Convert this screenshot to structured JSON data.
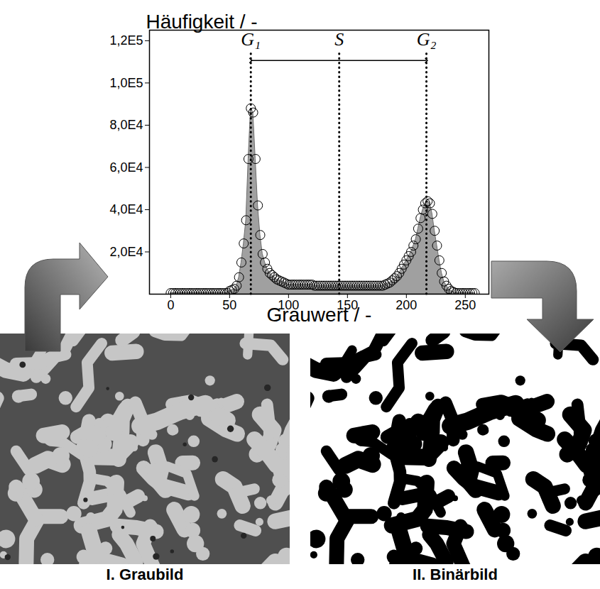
{
  "chart_data": {
    "type": "area",
    "marker": "circle",
    "color": "#a0a0a0",
    "y_label": "Häufigkeit / -",
    "x_label": "Grauwert / -",
    "xlim": [
      -18,
      270
    ],
    "xticks": [
      0,
      50,
      100,
      150,
      200,
      250
    ],
    "ylim": [
      0,
      125000
    ],
    "yticks": [
      {
        "value": 20000,
        "label": "2,0E4"
      },
      {
        "value": 40000,
        "label": "4,0E4"
      },
      {
        "value": 60000,
        "label": "6,0E4"
      },
      {
        "value": 80000,
        "label": "8,0E4"
      },
      {
        "value": 100000,
        "label": "1,0E5"
      },
      {
        "value": 120000,
        "label": "1,2E5"
      }
    ],
    "x": [
      0,
      2,
      4,
      6,
      8,
      10,
      12,
      14,
      16,
      18,
      20,
      22,
      24,
      26,
      28,
      30,
      32,
      34,
      36,
      38,
      40,
      42,
      44,
      46,
      48,
      50,
      52,
      54,
      56,
      58,
      60,
      62,
      64,
      66,
      68,
      70,
      72,
      74,
      76,
      78,
      80,
      82,
      84,
      86,
      88,
      90,
      92,
      94,
      96,
      98,
      100,
      102,
      104,
      106,
      108,
      110,
      112,
      114,
      116,
      118,
      120,
      122,
      124,
      126,
      128,
      130,
      132,
      134,
      136,
      138,
      140,
      142,
      144,
      146,
      148,
      150,
      152,
      154,
      156,
      158,
      160,
      162,
      164,
      166,
      168,
      170,
      172,
      174,
      176,
      178,
      180,
      182,
      184,
      186,
      188,
      190,
      192,
      194,
      196,
      198,
      200,
      202,
      204,
      206,
      208,
      210,
      212,
      214,
      216,
      218,
      220,
      222,
      224,
      226,
      228,
      230,
      232,
      234,
      236,
      238,
      240,
      242,
      244,
      246,
      248,
      250,
      252,
      254,
      256,
      258
    ],
    "values": [
      500,
      500,
      500,
      500,
      500,
      500,
      500,
      500,
      500,
      500,
      500,
      500,
      500,
      500,
      500,
      500,
      500,
      500,
      500,
      500,
      500,
      500,
      500,
      500,
      500,
      1500,
      2000,
      2500,
      4000,
      8000,
      15000,
      24000,
      35000,
      64000,
      88000,
      86000,
      64000,
      42000,
      28000,
      19000,
      15000,
      12000,
      10000,
      9000,
      8000,
      7000,
      6500,
      6000,
      5500,
      5000,
      4500,
      4500,
      4500,
      4500,
      4500,
      4500,
      4500,
      4500,
      4500,
      4500,
      4500,
      4000,
      4000,
      4000,
      4000,
      4000,
      4000,
      4000,
      4000,
      4000,
      4000,
      4000,
      4000,
      4000,
      4000,
      4000,
      4000,
      4000,
      4000,
      4000,
      4000,
      4000,
      4000,
      4000,
      4000,
      4000,
      4000,
      4000,
      4000,
      4000,
      4000,
      4500,
      5000,
      5500,
      6500,
      7500,
      8500,
      10000,
      12000,
      14000,
      16000,
      18000,
      20000,
      23000,
      26000,
      31000,
      36000,
      40000,
      43000,
      44000,
      43000,
      38000,
      30000,
      23000,
      16000,
      10000,
      6000,
      4000,
      2500,
      1500,
      1000,
      500,
      500,
      500,
      500,
      500,
      500,
      500,
      500,
      500
    ],
    "annotations": [
      {
        "text": "G₁",
        "x": 68
      },
      {
        "text": "S",
        "x": 143
      },
      {
        "text": "G₂",
        "x": 217
      }
    ]
  },
  "panels": [
    {
      "caption": "I. Graubild"
    },
    {
      "caption": "II. Binärbild"
    }
  ]
}
